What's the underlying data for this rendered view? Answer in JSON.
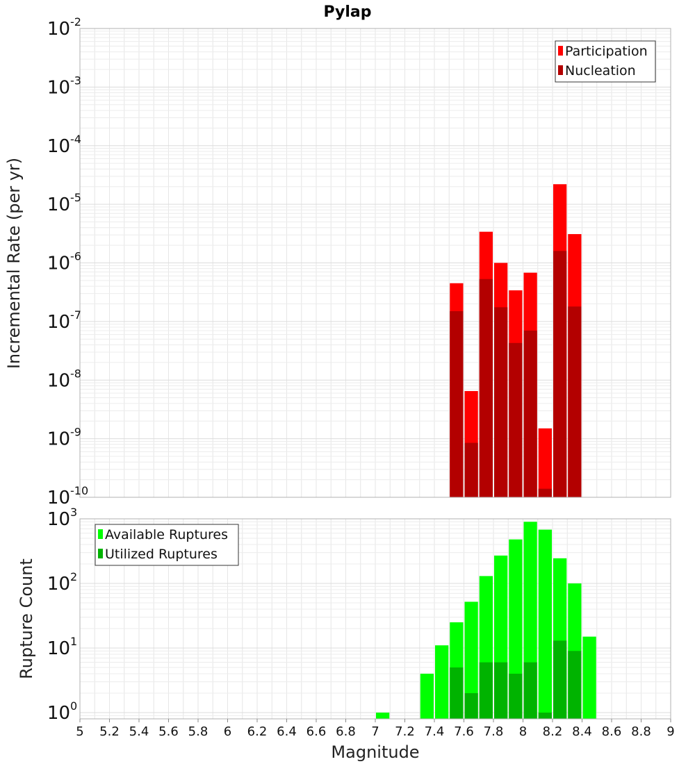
{
  "title": "Pylap",
  "xlabel": "Magnitude",
  "chart_data": [
    {
      "type": "bar",
      "ylabel": "Incremental Rate (per yr)",
      "yscale": "log",
      "ylim": [
        1e-10,
        0.01
      ],
      "xlim": [
        5,
        9
      ],
      "grid": true,
      "legend_position": "top-right",
      "y_tick_exponents": [
        "-2",
        "-3",
        "-4",
        "-5",
        "-6",
        "-7",
        "-8",
        "-9",
        "-10"
      ],
      "series": [
        {
          "name": "Participation",
          "color": "#ff0000",
          "x": [
            7.55,
            7.65,
            7.75,
            7.85,
            7.95,
            8.05,
            8.15,
            8.25,
            8.35
          ],
          "values": [
            4.5e-07,
            6.5e-09,
            3.4e-06,
            1e-06,
            3.4e-07,
            6.8e-07,
            1.5e-09,
            2.2e-05,
            3.1e-06
          ]
        },
        {
          "name": "Nucleation",
          "color": "#b30000",
          "x": [
            7.55,
            7.65,
            7.75,
            7.85,
            7.95,
            8.05,
            8.15,
            8.25,
            8.35
          ],
          "values": [
            1.5e-07,
            8.5e-10,
            5.3e-07,
            1.75e-07,
            4.3e-08,
            7e-08,
            1.4e-10,
            1.6e-06,
            1.8e-07
          ]
        }
      ]
    },
    {
      "type": "bar",
      "ylabel": "Rupture Count",
      "yscale": "log",
      "ylim": [
        0.8,
        1000
      ],
      "xlim": [
        5,
        9
      ],
      "grid": true,
      "legend_position": "top-left",
      "y_tick_exponents": [
        "3",
        "2",
        "1",
        "0"
      ],
      "series": [
        {
          "name": "Available Ruptures",
          "color": "#00ff00",
          "x": [
            7.05,
            7.35,
            7.45,
            7.55,
            7.65,
            7.75,
            7.85,
            7.95,
            8.05,
            8.15,
            8.25,
            8.35,
            8.45
          ],
          "values": [
            1,
            4,
            11,
            25,
            52,
            130,
            270,
            480,
            900,
            680,
            245,
            100,
            15
          ]
        },
        {
          "name": "Utilized Ruptures",
          "color": "#00b300",
          "x": [
            7.55,
            7.65,
            7.75,
            7.85,
            7.95,
            8.05,
            8.15,
            8.25,
            8.35
          ],
          "values": [
            5,
            2,
            6,
            6,
            4,
            6,
            1,
            13,
            9
          ]
        }
      ]
    }
  ],
  "x_tick_labels": [
    "5",
    "5.2",
    "5.4",
    "5.6",
    "5.8",
    "6",
    "6.2",
    "6.4",
    "6.6",
    "6.8",
    "7",
    "7.2",
    "7.4",
    "7.6",
    "7.8",
    "8",
    "8.2",
    "8.4",
    "8.6",
    "8.8",
    "9"
  ]
}
